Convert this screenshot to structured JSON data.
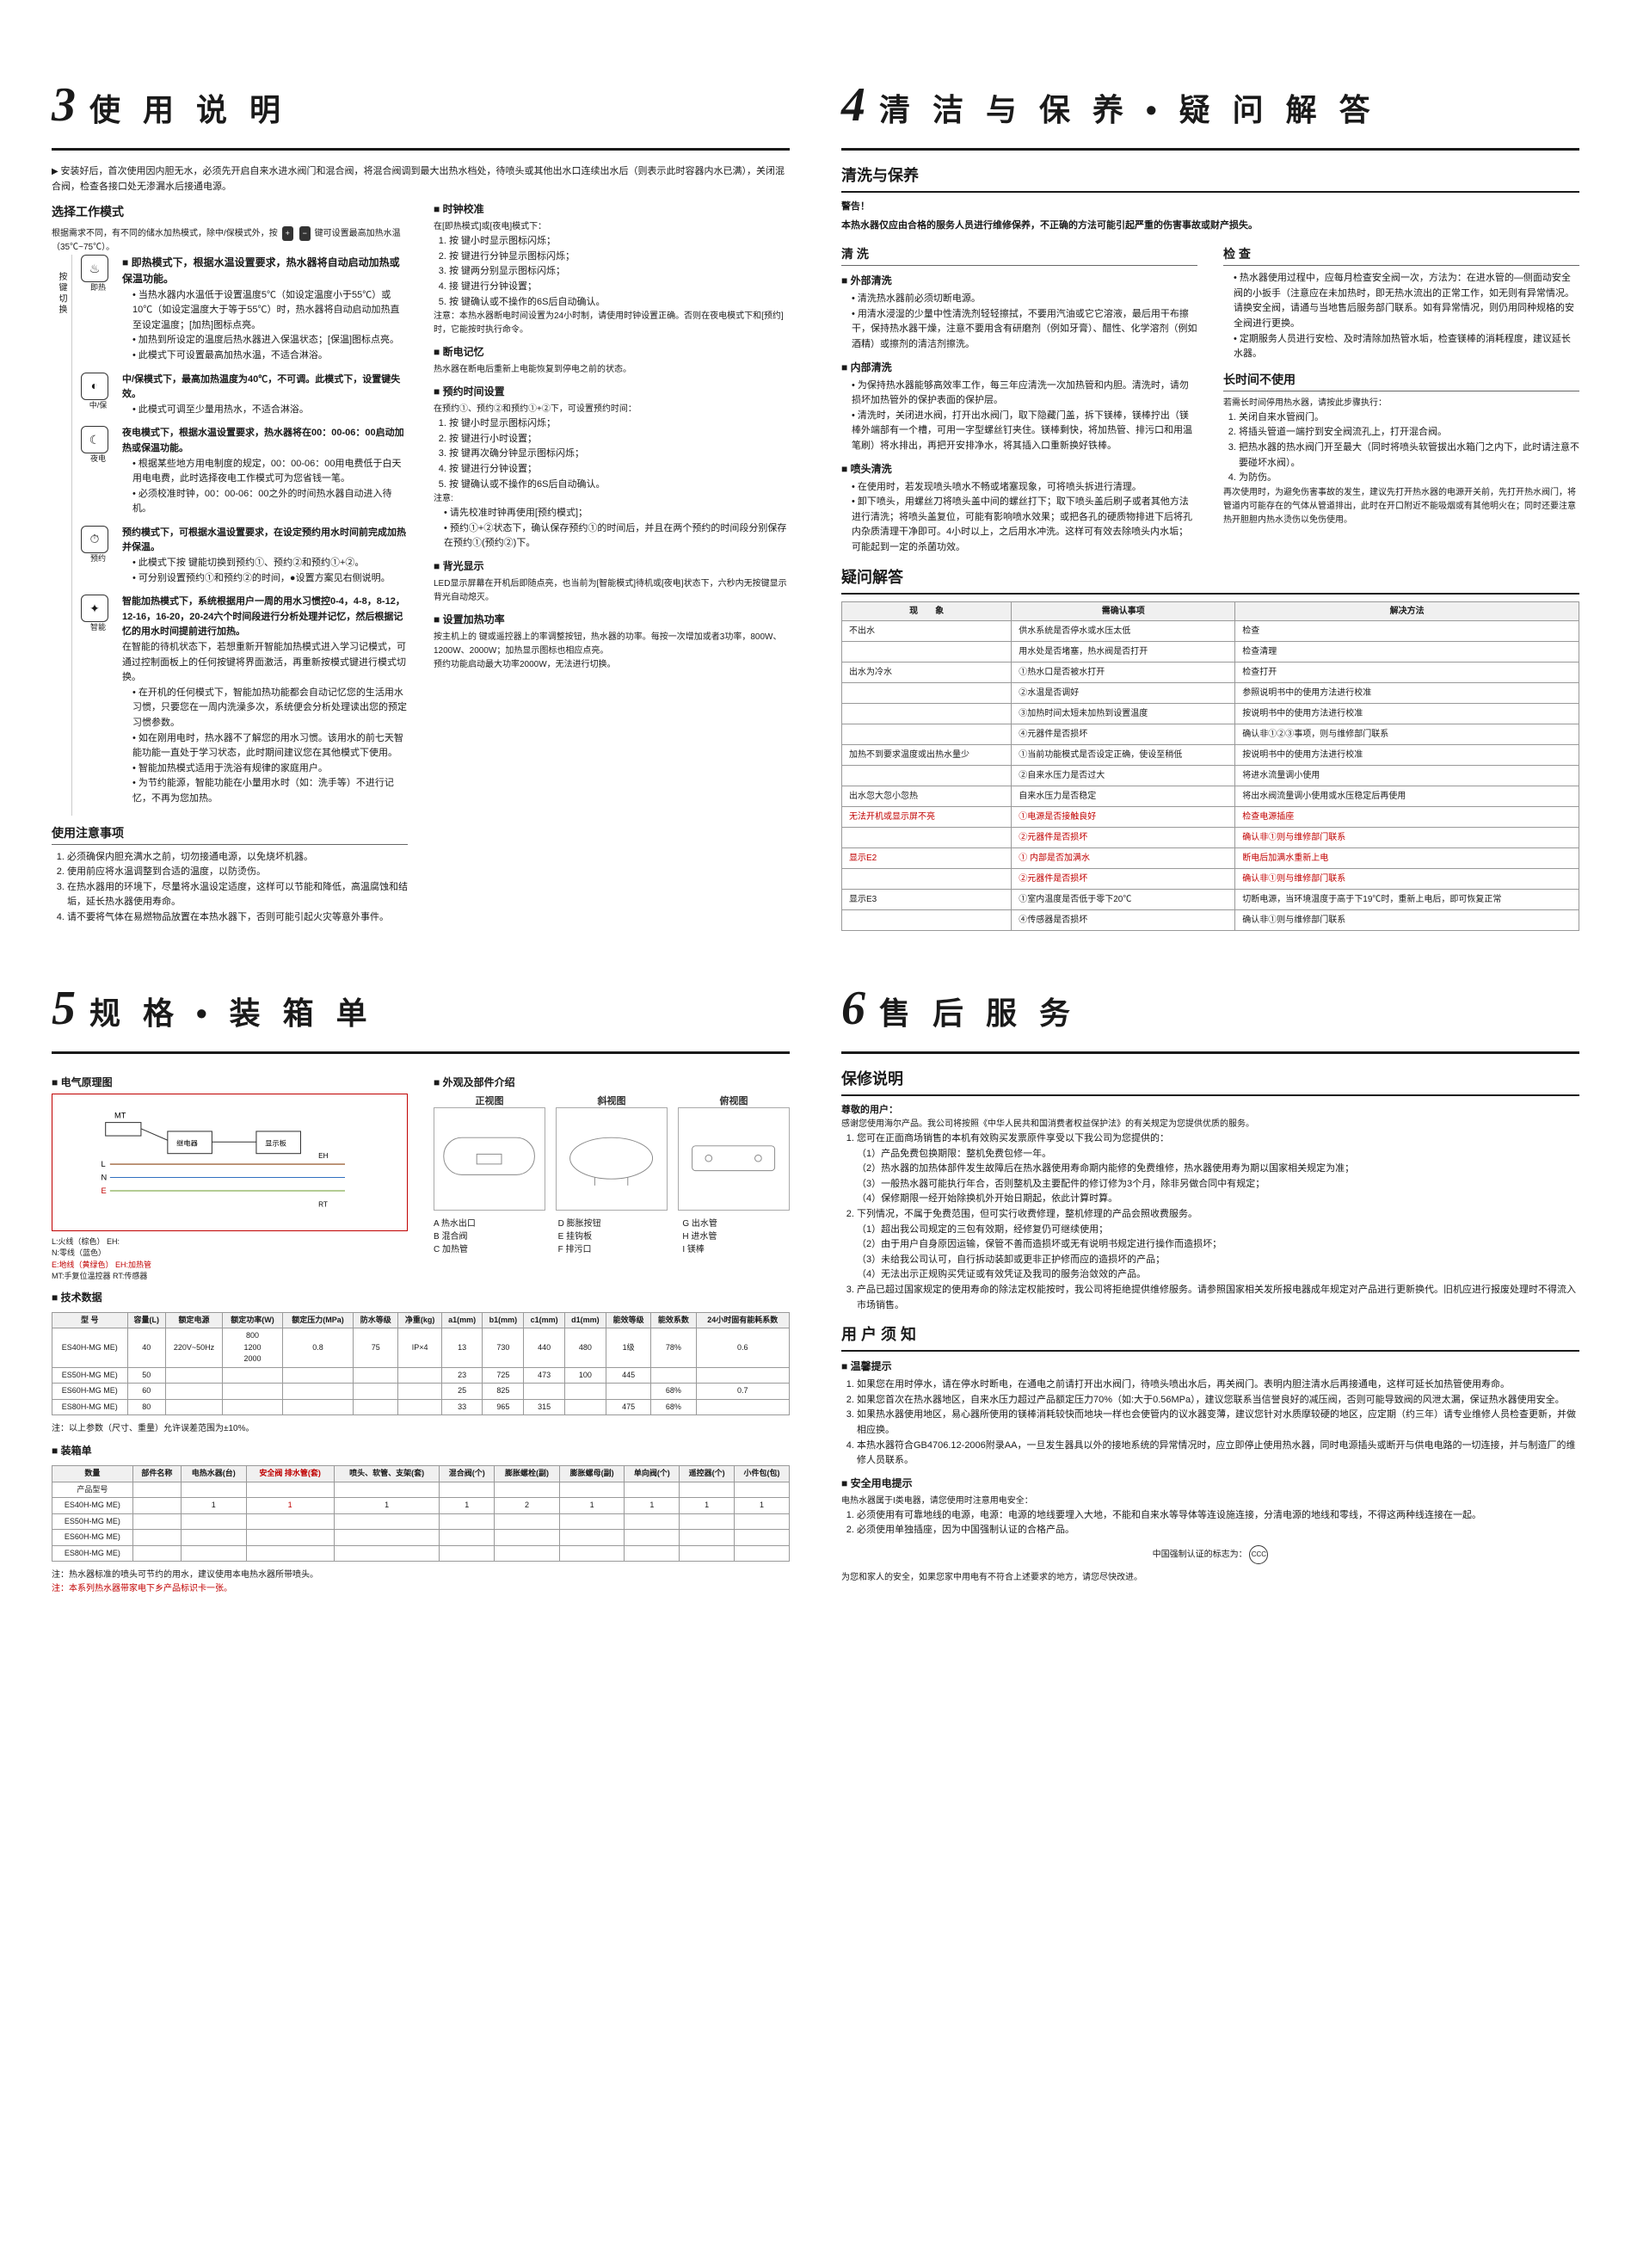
{
  "sections": {
    "s3": {
      "num": "3",
      "title": "使 用 说 明"
    },
    "s4": {
      "num": "4",
      "title": "清 洁 与 保 养 • 疑 问 解 答"
    },
    "s5": {
      "num": "5",
      "title": "规 格 • 装 箱 单"
    },
    "s6": {
      "num": "6",
      "title": "售 后 服 务"
    }
  },
  "s3": {
    "intro_tri": "安装好后，首次使用因内胆无水，必须先开启自来水进水阀门和混合阀，将混合阀调到最大出热水档处，待喷头或其他出水口连续出水后（则表示此时容器内水已满），关闭混合阀，检查各接口处无渗漏水后接通电源。",
    "mode_title": "选择工作模式",
    "mode_intro": "根据需求不同，有不同的储水加热模式，除中/保模式外，按",
    "mode_intro2": "键可设置最高加热水温（35℃~75℃）。",
    "rail": "按  键  切  换",
    "modes": {
      "instant": {
        "label": "即热",
        "title": "即热模式下，根据水温设置要求，热水器将自动启动加热或保温功能。",
        "bullets": [
          "当热水器内水温低于设置温度5℃（如设定温度小于55℃）或10℃（如设定温度大于等于55℃）时，热水器将自动启动加热直至设定温度；[加热]图标点亮。",
          "加热到所设定的温度后热水器进入保温状态；[保温]图标点亮。",
          "此模式下可设置最高加热水温，不适合淋浴。"
        ]
      },
      "mid": {
        "label": "中/保",
        "title": "中/保模式下，最高加热温度为40℃，不可调。此模式下，设置键失效。",
        "bullets": [
          "此模式可调至少量用热水，不适合淋浴。"
        ]
      },
      "night": {
        "label": "夜电",
        "title": "夜电模式下，根据水温设置要求，热水器将在00：00-06：00启动加热或保温功能。",
        "bullets": [
          "根据某些地方用电制度的规定，00：00-06：00用电费低于白天用电电费，此时选择夜电工作模式可为您省钱一笔。",
          "必须校准时钟，00：00-06：00之外的时间热水器自动进入待机。"
        ]
      },
      "reserve": {
        "label": "预约",
        "title": "预约模式下，可根据水温设置要求，在设定预约用水时间前完成加热并保温。",
        "bullets": [
          "此模式下按     键能切换到预约①、预约②和预约①+②。",
          "可分别设置预约①和预约②的时间，●设置方案见右侧说明。"
        ]
      },
      "smart": {
        "label": "智能",
        "title": "智能加热模式下，系统根据用户一周的用水习惯控0-4，4-8，8-12，12-16，16-20，20-24六个时间段进行分析处理并记忆，然后根据记忆的用水时间提前进行加热。",
        "p1": "在智能的待机状态下，若想重新开智能加热模式进入学习记模式，可通过控制面板上的任何按键将界面激活，再重新按模式键进行模式切换。",
        "bullets": [
          "在开机的任何模式下，智能加热功能都会自动记忆您的生活用水习惯，只要您在一周内洗澡多次，系统便会分析处理读出您的预定习惯参数。",
          "如在刚用电时，热水器不了解您的用水习惯。该用水的前七天智能功能一直处于学习状态，此时期间建议您在其他模式下使用。",
          "智能加热模式适用于洗浴有规律的家庭用户。",
          "为节约能源，智能功能在小量用水时（如：洗手等）不进行记忆，不再为您加热。"
        ]
      }
    },
    "use_notice_title": "使用注意事项",
    "use_notice": [
      "必须确保内胆充满水之前，切勿接通电源，以免烧坏机器。",
      "使用前应将水温调整到合适的温度，以防烫伤。",
      "在热水器用的环境下，尽量将水温设定适度，这样可以节能和降低，高温腐蚀和结垢，延长热水器使用寿命。",
      "请不要将气体在易燃物品放置在本热水器下，否则可能引起火灾等意外事件。"
    ],
    "right_col": {
      "clock_title": "时钟校准",
      "clock_intro": "在[即热模式]或[夜电]模式下：",
      "clock_steps": [
        "按     键小时显示图标闪烁；",
        "按     键进行分钟显示图标闪烁；",
        "按     键两分别显示图标闪烁；",
        "接     键进行分钟设置；",
        "按     键确认或不操作的6S后自动确认。"
      ],
      "clock_note": "注意：本热水器断电时间设置为24小时制，请使用时钟设置正确。否则在夜电模式下和[预约]时，它能按时执行命令。",
      "mem_title": "断电记忆",
      "mem_text": "热水器在断电后重新上电能恢复到停电之前的状态。",
      "reserve_title": "预约时间设置",
      "reserve_intro": "在预约①、预约②和预约①+②下，可设置预约时间：",
      "reserve_steps": [
        "按     键小时显示图标闪烁；",
        "按          键进行小时设置；",
        "按     键再次确分钟显示图标闪烁；",
        "按          键进行分钟设置；",
        "按     键确认或不操作的6S后自动确认。"
      ],
      "reserve_notes": [
        "请先校准时钟再使用[预约模式]；",
        "预约①+②状态下，确认保存预约①的时间后，并且在两个预约的时间段分别保存在预约①(预约②)下。"
      ],
      "backlight_title": "背光显示",
      "backlight_text": "LED显示屏幕在开机后即随点亮，也当前为[智能模式]待机或[夜电]状态下，六秒内无按键显示背光自动熄灭。",
      "power_title": "设置加热功率",
      "power_text1": "按主机上的    键或遥控器上的率调整按钮，热水器的功率。每按一次增加或者3功率，800W、1200W、2000W；加热显示图标也相应点亮。",
      "power_text2": "预约功能启动最大功率2000W，无法进行切换。"
    }
  },
  "s4": {
    "clean_title": "清洗与保养",
    "warn_label": "警告！",
    "warn_text": "本热水器仅应由合格的服务人员进行维修保养，不正确的方法可能引起严重的伤害事故或财产损失。",
    "clean": {
      "col1_h": "清 洗",
      "wash_h": "外部清洗",
      "wash_b": [
        "清洗热水器前必须切断电源。",
        "用清水浸湿的少量中性清洗剂轻轻擦拭，不要用汽油或它它溶液，最后用干布擦干，保持热水器干燥，注意不要用含有研磨剂（例如牙膏）、醋性、化学溶剂（例如酒精）或擦剂的清洁剂擦洗。"
      ],
      "inner_h": "内部清洗",
      "inner_b": [
        "为保持热水器能够高效率工作，每三年应清洗一次加热管和内胆。清洗时，请勿损坏加热管外的保护表面的保护层。",
        "清洗时，关闭进水阀，打开出水阀门，取下隐藏门盖，拆下镁棒，镁棒拧出（镁棒外端部有一个槽，可用一字型螺丝钉夹住。镁棒剩快，将加热管、排污口和用温笔刷）将水排出，再把开安排净水，将其插入口重新换好铁棒。"
      ],
      "nozzle_h": "喷头清洗",
      "nozzle_b": [
        "在使用时，若发现喷头喷水不畅或堵塞现象，可将喷头拆进行清理。",
        "卸下喷头，用螺丝刀将喷头盖中间的螺丝打下；取下喷头盖后刷子或者其他方法进行清洗；将喷头盖复位，可能有影响喷水效果；或把各孔的硬质物排进下后将孔内杂质清理干净即可。4小时以上，之后用水冲洗。这样可有效去除喷头内水垢；可能起到一定的杀菌功效。"
      ],
      "col2_h": "检 查",
      "check_b": [
        "热水器使用过程中，应每月检查安全阀一次，方法为：在进水管的—侧面动安全阀的小扳手（注意应在未加热时，即无热水流出的正常工作，如无则有异常情况。请换安全阀，请通与当地售后服务部门联系。如有异常情况，则仍用同种规格的安全阀进行更换。",
        "定期服务人员进行安检、及时清除加热管水垢，检查镁棒的消耗程度，建议延长水器。"
      ],
      "long_h": "长时间不使用",
      "long_intro": "若需长时间停用热水器，请按此步骤执行：",
      "long_steps": [
        "关闭自来水管阀门。",
        "将插头管道一端拧到安全阀流孔上，打开混合阀。",
        "把热水器的热水阀门开至最大（同时将喷头软管拔出水箱门之内下，此时请注意不要碰坏水阀）。",
        "为防伤。"
      ],
      "long_note": "再次使用时，为避免伤害事故的发生，建议先打开热水器的电源开关前，先打开热水阀门，将管道内可能存在的气体从管道排出，此时在开口附近不能吸烟或有其他明火在；同时还要注意热开胆胆内热水烫伤以免伤使用。"
    },
    "qa_title": "疑问解答",
    "qa": {
      "cols": [
        "现　　象",
        "需确认事项",
        "解决方法"
      ],
      "rows": [
        [
          "不出水",
          "供水系统是否停水或水压太低",
          "检查"
        ],
        [
          "",
          "用水处是否堵塞，热水阀是否打开",
          "检查清理"
        ],
        [
          "出水为冷水",
          "①热水口是否被水打开",
          "检查打开"
        ],
        [
          "",
          "②水温是否调好",
          "参照说明书中的使用方法进行校准"
        ],
        [
          "",
          "③加热时间太短未加热到设置温度",
          "按说明书中的使用方法进行校准"
        ],
        [
          "",
          "④元器件是否损坏",
          "确认非①②③事项，则与维修部门联系"
        ],
        [
          "加热不到要求温度或出热水量少",
          "①当前功能模式是否设定正确，使设至稍低",
          "按说明书中的使用方法进行校准"
        ],
        [
          "",
          "②自来水压力是否过大",
          "将进水流量调小使用"
        ],
        [
          "出水忽大忽小忽热",
          "自来水压力是否稳定",
          "将出水阀流量调小使用或水压稳定后再使用"
        ],
        [
          "无法开机或显示屏不亮",
          "①电源是否接触良好",
          "检查电源插座"
        ],
        [
          "",
          "②元器件是否损坏",
          "确认非①则与维修部门联系"
        ],
        [
          "显示E2",
          "① 内部是否加满水",
          "断电后加满水重新上电"
        ],
        [
          "",
          "②元器件是否损坏",
          "确认非①则与维修部门联系"
        ],
        [
          "显示E3",
          "①室内温度是否低于零下20℃",
          "切断电源，当环境温度于高于下19℃时，重新上电后，即可恢复正常"
        ],
        [
          "",
          "④传感器是否损坏",
          "确认非①则与维修部门联系"
        ]
      ],
      "red_phenoms": [
        "无法开机或显示屏不亮",
        "显示E2"
      ]
    }
  },
  "s5": {
    "circuit_title": "电气原理图",
    "parts_title": "外观及部件介绍",
    "legend_lines": [
      "L:火线（棕色）   EH:",
      "N:零线（蓝色）",
      "E:地线（黄绿色）  EH:加热管",
      "MT:手复位温控器   RT:传感器"
    ],
    "legend_red": [
      "E:地线（黄绿色）"
    ],
    "views": [
      "正视图",
      "斜视图",
      "俯视图"
    ],
    "parts_labels": {
      "A": "A 热水出口",
      "B": "B 混合阀",
      "C": "C 加热管",
      "D": "D 膨胀按钮",
      "E": "E 挂钩板",
      "F": "F 排污口",
      "G": "G 出水管",
      "H": "H 进水管",
      "I": "I 镁棒"
    },
    "tech_title": "技术数据",
    "tech": {
      "headers": [
        "型 号",
        "容量(L)",
        "额定电源",
        "额定功率(W)",
        "额定压力(MPa)",
        "防水等级",
        "净重(kg)",
        "a1(mm)",
        "b1(mm)",
        "c1(mm)",
        "d1(mm)",
        "能效等级",
        "能效系数",
        "24小时固有能耗系数"
      ],
      "rows": [
        [
          "ES40H-MG ME)",
          "40",
          "220V~50Hz",
          "800\n1200\n2000",
          "0.8",
          "75",
          "IP×4",
          "13",
          "730",
          "440",
          "480",
          "1级",
          "78%",
          "0.6"
        ],
        [
          "ES50H-MG ME)",
          "50",
          "",
          "",
          "",
          "",
          "",
          "23",
          "725",
          "473",
          "100",
          "445",
          "",
          ""
        ],
        [
          "ES60H-MG ME)",
          "60",
          "",
          "",
          "",
          "",
          "",
          "25",
          "825",
          "",
          "",
          "",
          "68%",
          "0.7"
        ],
        [
          "ES80H-MG ME)",
          "80",
          "",
          "",
          "",
          "",
          "",
          "33",
          "965",
          "315",
          "",
          "475",
          "68%",
          ""
        ]
      ],
      "note": "注：以上参数（尺寸、重量）允许误差范围为±10%。"
    },
    "pack_title": "装箱单",
    "pack": {
      "headers": [
        "数量",
        "部件名称",
        "电热水器(台)",
        "安全阀 排水管(套)",
        "喷头、软管、支架(套)",
        "混合阀(个)",
        "膨胀螺栓(副)",
        "膨胀螺母(副)",
        "单向阀(个)",
        "遥控器(个)",
        "小件包(包)"
      ],
      "red_col_idx": 3,
      "rows": [
        [
          "产品型号",
          "",
          "",
          "",
          "",
          "",
          "",
          "",
          "",
          "",
          ""
        ],
        [
          "ES40H-MG ME)",
          "",
          "1",
          "1",
          "1",
          "1",
          "2",
          "1",
          "1",
          "1",
          "1"
        ],
        [
          "ES50H-MG ME)",
          "",
          "",
          "",
          "",
          "",
          "",
          "",
          "",
          "",
          ""
        ],
        [
          "ES60H-MG ME)",
          "",
          "",
          "",
          "",
          "",
          "",
          "",
          "",
          "",
          ""
        ],
        [
          "ES80H-MG ME)",
          "",
          "",
          "",
          "",
          "",
          "",
          "",
          "",
          "",
          ""
        ]
      ]
    },
    "pack_note1": "注：热水器标准的喷头可节约的用水，建议使用本电热水器所带喷头。",
    "pack_note2": "注：本系列热水器带家电下乡产品标识卡一张。"
  },
  "s6": {
    "warranty_title": "保修说明",
    "dear": "尊敬的用户：",
    "thanks": "感谢您使用海尔产品。我公司将按照《中华人民共和国消费者权益保护法》的有关规定为您提供优质的服务。",
    "warranty_list": [
      "您可在正面商场销售的本机有效购买发票原件享受以下我公司为您提供的：\n（1）产品免费包换期限：整机免费包修一年。\n（2）热水器的加热体部件发生故障后在热水器使用寿命期内能修的免费维修，热水器使用寿为期以国家相关规定为准；\n（3）一般热水器可能执行年合，否则整机及主要配件的修订修为3个月，除非另做合同中有规定；\n（4）保修期限一经开始除换机外开始日期起，依此计算时算。",
      "下列情况，不属于免费范围，但可实行收费修理，整机修理的产品会照收费服务。\n（1）超出我公司规定的三包有效期，经修复仍可继续使用；\n（2）由于用户自身原因运输，保管不善而造损坏或无有说明书规定进行操作而造损坏；\n（3）未给我公司认可，自行拆动装卸或更非正护修而应的造损坏的产品；\n（4）无法出示正规购买凭证或有效凭证及我司的服务治敛效的产品。",
      "产品已超过国家规定的使用寿命的除法定权能按时，我公司将拒绝提供维修服务。请参照国家相关发所报电器成年规定对产品进行更新换代。旧机应进行报废处理时不得流入市场销售。"
    ],
    "notice_title": "用 户 须 知",
    "tips_h": "温馨提示",
    "tips": [
      "如果您在用时停水，请在停水时断电，在通电之前请打开出水阀门，待喷头喷出水后，再关阀门。表明内胆注清水后再接通电，这样可延长加热管使用寿命。",
      "如果您首次在热水器地区，自来水压力超过产品额定压力70%（如:大于0.56MPa），建议您联系当信誉良好的减压阀，否则可能导致阀的风泄太漏，保证热水器使用安全。",
      "如果热水器使用地区，易心器所使用的镁棒消耗较快而地块一样也会使管内的议水器变薄，建议您针对水质摩较硬的地区，应定期（约三年）请专业维修人员检查更新，并做相应换。",
      "本热水器符合GB4706.12-2006附录AA，一旦发生器具以外的接地系统的异常情况时，应立即停止使用热水器，同时电源插头或断开与供电电路的一切连接，并与制造厂的维修人员联系。"
    ],
    "safety_h": "安全用电提示",
    "safety_intro": "电热水器属于I类电器，请您使用时注意用电安全：",
    "safety_list": [
      "必须使用有可靠地线的电源，电源：电源的地线要埋入大地，不能和自来水等导体等连设施连接，分清电源的地线和零线，不得这两种线连接在一起。",
      "必须使用单独插座，因为中国强制认证的合格产品。",
      "",
      "为您和家人的安全，如果您家中用电有不符合上述要求的地方，请您尽快改进。"
    ],
    "safety_center": "中国强制认证的标志为：    "
  }
}
